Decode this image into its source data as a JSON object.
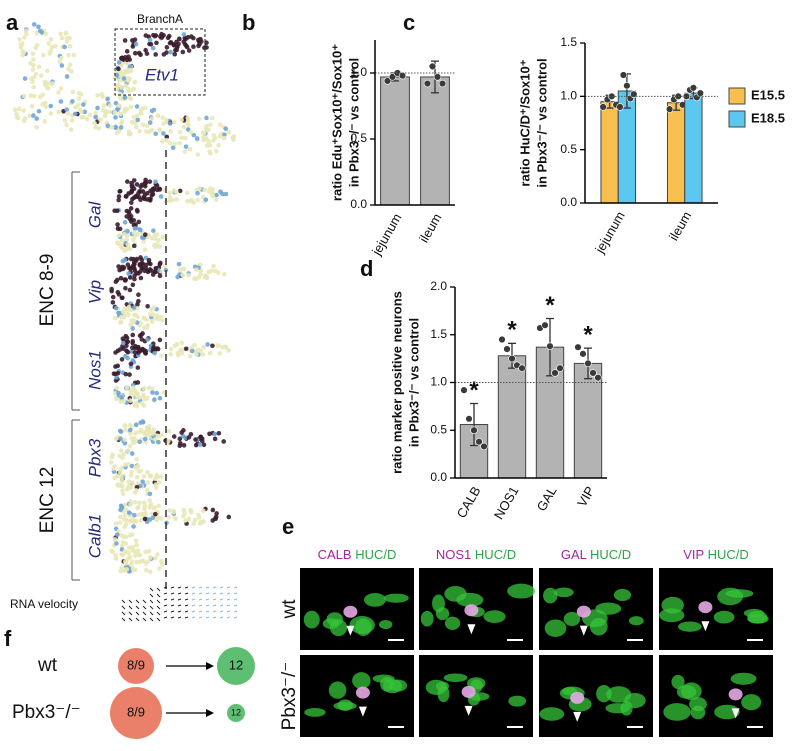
{
  "panel_labels": [
    "a",
    "b",
    "c",
    "d",
    "e",
    "f"
  ],
  "panel_a": {
    "box_label": "BranchA",
    "box_gene": "Etv1",
    "genes": [
      "Gal",
      "Vip",
      "Nos1",
      "Pbx3",
      "Calb1"
    ],
    "groups": [
      "ENC 8-9",
      "ENC 12"
    ],
    "velocity_label": "RNA velocity"
  },
  "chart_data": [
    {
      "type": "bar",
      "ylabel": [
        "ratio Edu⁺Sox10⁺/Sox10⁺",
        "in Pbx3⁻/⁻ vs control"
      ],
      "categories": [
        "jejunum",
        "ileum"
      ],
      "values": [
        0.97,
        0.97
      ],
      "errors": [
        0.03,
        0.12
      ],
      "points": [
        [
          0.94,
          0.97,
          1.0,
          0.98
        ],
        [
          0.92,
          1.05,
          0.97,
          0.92
        ]
      ],
      "color": "#b3b3b3",
      "ylim": [
        0,
        1.25
      ],
      "yticks": [
        {
          "value": 0,
          "label": "0.0"
        },
        {
          "value": 0.5,
          "label": "0.5"
        },
        {
          "value": 1,
          "label": "1.0"
        }
      ],
      "reference_line": 1
    },
    {
      "type": "bar",
      "ylabel": [
        "ratio HuC/D⁺/Sox10⁺",
        "in Pbx3⁻/⁻ vs control"
      ],
      "categories": [
        "jejunum",
        "ileum"
      ],
      "series": [
        {
          "name": "E15.5",
          "color": "#f7bf4f",
          "values": [
            0.95,
            0.94
          ],
          "errors": [
            0.06,
            0.07
          ],
          "points": [
            [
              0.9,
              0.97,
              1.0,
              0.92
            ],
            [
              0.88,
              0.97,
              1.0,
              0.92
            ]
          ]
        },
        {
          "name": "E18.5",
          "color": "#5cc8ef",
          "values": [
            1.05,
            1.03
          ],
          "errors": [
            0.16,
            0.05
          ],
          "points": [
            [
              0.9,
              1.2,
              1.1,
              0.98,
              1.02
            ],
            [
              1.0,
              1.06,
              1.08,
              0.99,
              1.03
            ]
          ]
        }
      ],
      "ylim": [
        0,
        1.5
      ],
      "yticks": [
        {
          "value": 0,
          "label": "0.0"
        },
        {
          "value": 0.5,
          "label": "0.5"
        },
        {
          "value": 1,
          "label": "1.0"
        },
        {
          "value": 1.5,
          "label": "1.5"
        }
      ],
      "reference_line": 1,
      "legend": "right"
    },
    {
      "type": "bar",
      "ylabel": [
        "ratio marker positive neurons",
        "in Pbx3⁻/⁻ vs control"
      ],
      "categories": [
        "CALB",
        "NOS1",
        "GAL",
        "VIP"
      ],
      "values": [
        0.56,
        1.28,
        1.37,
        1.2
      ],
      "errors": [
        0.22,
        0.13,
        0.3,
        0.16
      ],
      "points": [
        [
          0.92,
          0.62,
          0.5,
          0.38,
          0.33
        ],
        [
          1.45,
          1.35,
          1.25,
          1.18,
          1.15
        ],
        [
          1.57,
          1.6,
          1.38,
          1.1,
          1.15
        ],
        [
          1.37,
          1.3,
          1.2,
          1.1,
          1.05
        ]
      ],
      "annotations": [
        "*",
        "*",
        "*",
        "*"
      ],
      "annotation_color": "#e8262b",
      "color": "#b3b3b3",
      "ylim": [
        0,
        2
      ],
      "yticks": [
        {
          "value": 0,
          "label": "0.0"
        },
        {
          "value": 0.5,
          "label": "0.5"
        },
        {
          "value": 1,
          "label": "1.0"
        },
        {
          "value": 1.5,
          "label": "1.5"
        },
        {
          "value": 2,
          "label": "2.0"
        }
      ],
      "reference_line": 1
    }
  ],
  "panel_e": {
    "columns": [
      {
        "marker": "CALB",
        "counterstain": "HUC/D"
      },
      {
        "marker": "NOS1",
        "counterstain": "HUC/D"
      },
      {
        "marker": "GAL",
        "counterstain": "HUC/D"
      },
      {
        "marker": "VIP",
        "counterstain": "HUC/D"
      }
    ],
    "rows": [
      "wt",
      "Pbx3⁻/⁻"
    ]
  },
  "panel_f": {
    "rows": [
      {
        "label": "wt",
        "from": "8/9",
        "to": "12"
      },
      {
        "label": "Pbx3⁻/⁻",
        "from": "8/9",
        "to": "12"
      }
    ]
  }
}
